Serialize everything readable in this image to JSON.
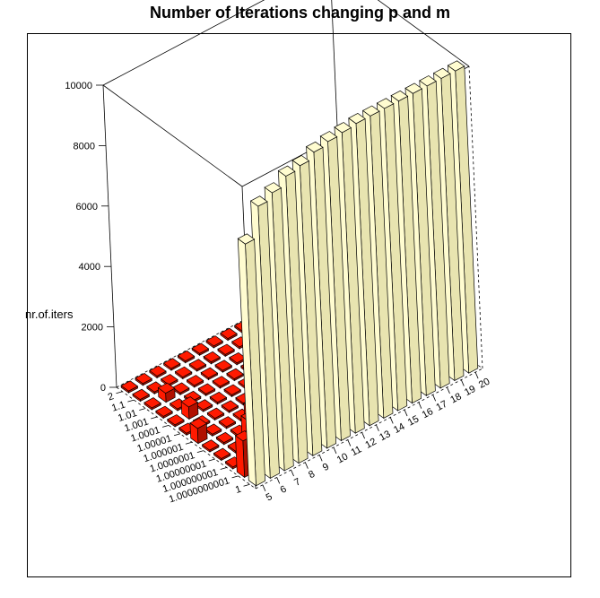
{
  "chart_data": {
    "type": "bar3d",
    "title": "Number of Iterations changing p and m",
    "zlabel": "nr.of.iters",
    "zlim": [
      0,
      10000
    ],
    "z_ticks": [
      0,
      2000,
      4000,
      6000,
      8000,
      10000
    ],
    "p_labels": [
      "2",
      "1.1",
      "1.01",
      "1.001",
      "1.0001",
      "1.00001",
      "1.000001",
      "1.0000001",
      "1.00000001",
      "1.000000001",
      "1.0000000001",
      "1"
    ],
    "m_labels": [
      "5",
      "6",
      "7",
      "8",
      "9",
      "10",
      "11",
      "12",
      "13",
      "14",
      "15",
      "16",
      "17",
      "18",
      "19",
      "20"
    ],
    "bars": [
      {
        "p": "1",
        "m": "5",
        "value": 8000
      },
      {
        "p": "1.0000000001",
        "m": "5",
        "value": 1200
      },
      {
        "p": "1",
        "m": "6",
        "value": 9000
      },
      {
        "p": "1",
        "m": "7",
        "value": 9200
      },
      {
        "p": "1",
        "m": "8",
        "value": 9500
      },
      {
        "p": "1",
        "m": "9",
        "value": 9600
      },
      {
        "p": "1",
        "m": "10",
        "value": 9800
      },
      {
        "p": "1",
        "m": "11",
        "value": 9900
      },
      {
        "p": "1",
        "m": "12",
        "value": 9950
      },
      {
        "p": "1",
        "m": "13",
        "value": 10000
      },
      {
        "p": "1",
        "m": "14",
        "value": 10000
      },
      {
        "p": "1",
        "m": "15",
        "value": 10000
      },
      {
        "p": "1",
        "m": "16",
        "value": 10000
      },
      {
        "p": "1",
        "m": "17",
        "value": 10000
      },
      {
        "p": "1",
        "m": "18",
        "value": 10000
      },
      {
        "p": "1",
        "m": "19",
        "value": 10000
      },
      {
        "p": "1",
        "m": "20",
        "value": 10000
      },
      {
        "p": "1.000000001",
        "m": "6",
        "value": 700
      },
      {
        "p": "1.00000001",
        "m": "7",
        "value": 800
      },
      {
        "p": "1.0000001",
        "m": "8",
        "value": 700
      },
      {
        "p": "1.000001",
        "m": "9",
        "value": 600
      },
      {
        "p": "1.00001",
        "m": "10",
        "value": 500
      },
      {
        "p": "1.0001",
        "m": "11",
        "value": 400
      },
      {
        "p": "1.000001",
        "m": "5",
        "value": 500
      },
      {
        "p": "1.0001",
        "m": "6",
        "value": 400
      },
      {
        "p": "1.01",
        "m": "6",
        "value": 300
      },
      {
        "p": "1.00001",
        "m": "12",
        "value": 400
      },
      {
        "p": "1.0001",
        "m": "13",
        "value": 500
      },
      {
        "p": "1.001",
        "m": "14",
        "value": 600
      },
      {
        "p": "1.01",
        "m": "15",
        "value": 500
      }
    ],
    "colors": {
      "tall_bar": "#fffcd0",
      "tall_bar_side": "#e8e4b0",
      "small_bar": "#ff1a00",
      "small_bar_side": "#b01000",
      "edge": "#000000"
    }
  }
}
